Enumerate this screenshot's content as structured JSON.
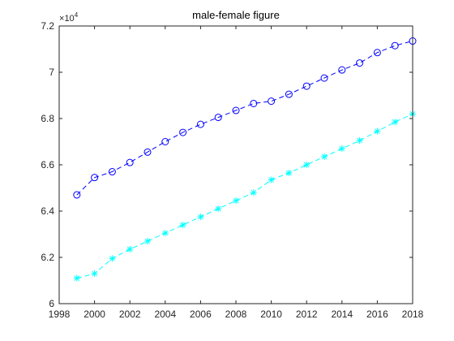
{
  "chart_data": {
    "type": "line",
    "title": "male-female figure",
    "xlabel": "",
    "ylabel": "",
    "y_exponent_base": "10",
    "y_exponent_power": "4",
    "xlim": [
      1998,
      2018
    ],
    "ylim": [
      6.0,
      7.2
    ],
    "x_ticks": [
      "1998",
      "2000",
      "2002",
      "2004",
      "2006",
      "2008",
      "2010",
      "2012",
      "2014",
      "2016",
      "2018"
    ],
    "y_ticks": [
      "6",
      "6.2",
      "6.4",
      "6.6",
      "6.8",
      "7",
      "7.2"
    ],
    "grid": false,
    "legend": "none",
    "x": [
      1999,
      2000,
      2001,
      2002,
      2003,
      2004,
      2005,
      2006,
      2007,
      2008,
      2009,
      2010,
      2011,
      2012,
      2013,
      2014,
      2015,
      2016,
      2017,
      2018
    ],
    "series": [
      {
        "color": "#0000ff",
        "marker": "circle",
        "line_style": "dashed",
        "values": [
          6.47,
          6.545,
          6.57,
          6.61,
          6.655,
          6.7,
          6.74,
          6.775,
          6.805,
          6.835,
          6.865,
          6.875,
          6.905,
          6.94,
          6.975,
          7.01,
          7.04,
          7.085,
          7.115,
          7.135
        ]
      },
      {
        "color": "#00ffff",
        "marker": "asterisk",
        "line_style": "dashed",
        "values": [
          6.11,
          6.13,
          6.195,
          6.235,
          6.27,
          6.305,
          6.34,
          6.375,
          6.41,
          6.445,
          6.48,
          6.535,
          6.565,
          6.6,
          6.635,
          6.67,
          6.705,
          6.745,
          6.785,
          6.82
        ]
      }
    ]
  }
}
